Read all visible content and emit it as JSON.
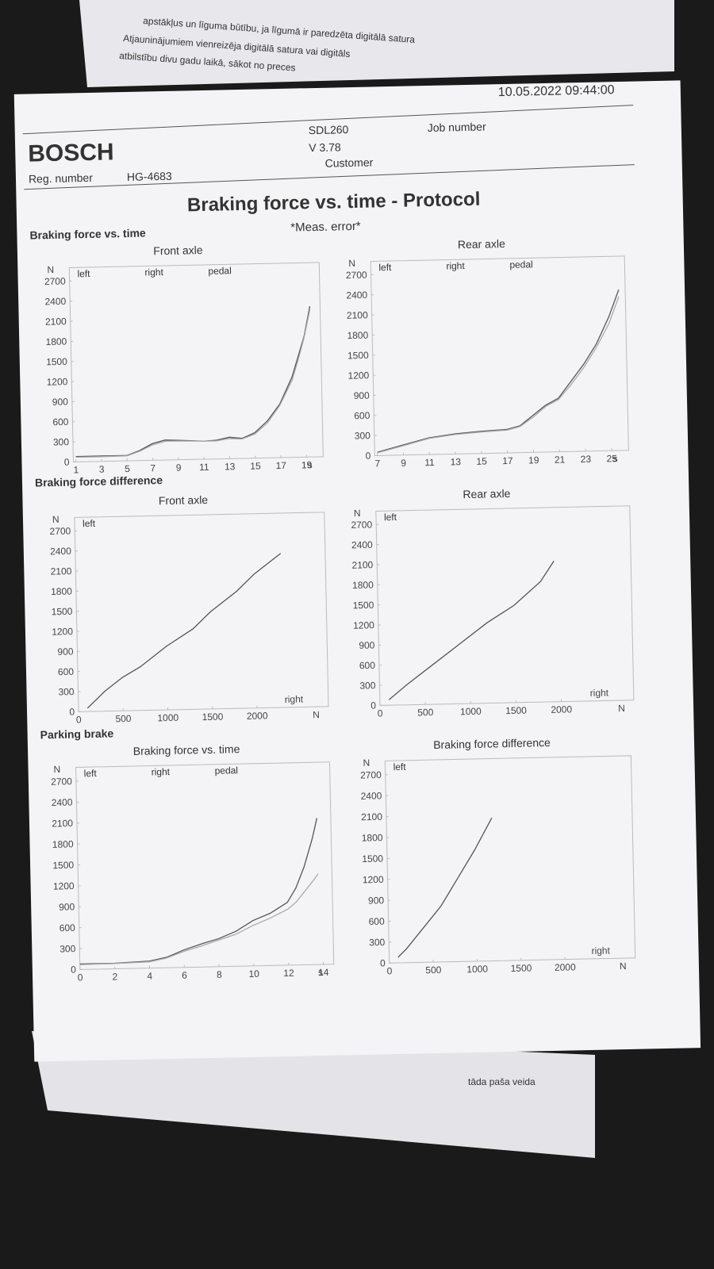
{
  "background_text": [
    "apstākļus un līguma būtību, ja līgumā ir paredzēta digitālā satura",
    "Atjauninājumiem vienreizēja digitālā satura vai digitāls",
    "atbilstību divu gadu laikā, sākot no preces",
    "tāda paša veida"
  ],
  "header": {
    "brand": "BOSCH",
    "reg_label": "Reg. number",
    "reg_number": "HG-4683",
    "device": "SDL260",
    "version": "V 3.78",
    "customer_label": "Customer",
    "job_label": "Job number",
    "datetime": "10.05.2022  09:44:00"
  },
  "title": "Braking force vs. time - Protocol",
  "note": "*Meas. error*",
  "sections": [
    "Braking force vs.  time",
    "Braking force difference",
    "Parking brake"
  ],
  "chart_data": [
    {
      "type": "line",
      "title": "Front axle",
      "y_label": "N",
      "x_label": "s",
      "x": [
        1,
        3,
        5,
        6,
        7,
        8,
        9,
        10,
        11,
        12,
        13,
        14,
        15,
        16,
        17,
        18,
        18.5,
        19,
        19.5
      ],
      "series": [
        {
          "name": "left",
          "color": "#555555",
          "values": [
            80,
            80,
            80,
            150,
            250,
            300,
            290,
            280,
            270,
            280,
            320,
            300,
            380,
            550,
            800,
            1200,
            1500,
            1800,
            2250
          ]
        },
        {
          "name": "right",
          "color": "#aaaaaa",
          "values": [
            70,
            70,
            75,
            140,
            230,
            280,
            280,
            275,
            270,
            270,
            300,
            290,
            360,
            520,
            780,
            1150,
            1450,
            1780,
            2200
          ]
        },
        {
          "name": "pedal",
          "color": "#888888",
          "values": [
            null,
            null,
            null,
            null,
            null,
            null,
            null,
            null,
            null,
            null,
            null,
            null,
            null,
            null,
            null,
            null,
            null,
            null,
            null
          ]
        }
      ],
      "xlim": [
        0.8,
        20.3
      ],
      "xticks": [
        1,
        3,
        5,
        7,
        9,
        11,
        13,
        15,
        17,
        19
      ],
      "ylim": [
        0,
        2900
      ],
      "yticks": [
        0,
        300,
        600,
        900,
        1200,
        1500,
        1800,
        2100,
        2400,
        2700
      ]
    },
    {
      "type": "line",
      "title": "Rear axle",
      "y_label": "N",
      "x_label": "s",
      "x": [
        7,
        9,
        11,
        13,
        15,
        17,
        18,
        19,
        20,
        21,
        22,
        23,
        24,
        25,
        25.8
      ],
      "series": [
        {
          "name": "left",
          "color": "#555555",
          "values": [
            50,
            150,
            250,
            300,
            330,
            350,
            400,
            550,
            700,
            800,
            1050,
            1300,
            1600,
            2000,
            2400
          ]
        },
        {
          "name": "right",
          "color": "#aaaaaa",
          "values": [
            40,
            140,
            240,
            290,
            320,
            340,
            390,
            520,
            680,
            780,
            1000,
            1250,
            1550,
            1900,
            2300
          ]
        },
        {
          "name": "pedal",
          "color": "#888888",
          "values": [
            null,
            null,
            null,
            null,
            null,
            null,
            null,
            null,
            null,
            null,
            null,
            null,
            null,
            null,
            null
          ]
        }
      ],
      "xlim": [
        6.8,
        26.3
      ],
      "xticks": [
        7,
        9,
        11,
        13,
        15,
        17,
        19,
        21,
        23,
        25
      ],
      "ylim": [
        0,
        2900
      ],
      "yticks": [
        0,
        300,
        600,
        900,
        1200,
        1500,
        1800,
        2100,
        2400,
        2700
      ]
    },
    {
      "type": "line",
      "title": "Front axle",
      "y_label": "N",
      "x_label": "N",
      "x_title": "right",
      "x": [
        100,
        300,
        500,
        700,
        1000,
        1300,
        1500,
        1800,
        2000,
        2300
      ],
      "series": [
        {
          "name": "left",
          "color": "#555555",
          "values": [
            50,
            300,
            500,
            650,
            950,
            1200,
            1450,
            1750,
            2000,
            2300
          ]
        }
      ],
      "xlim": [
        0,
        2800
      ],
      "xticks": [
        0,
        500,
        1000,
        1500,
        2000
      ],
      "ylim": [
        0,
        2900
      ],
      "yticks": [
        0,
        300,
        600,
        900,
        1200,
        1500,
        1800,
        2100,
        2400,
        2700
      ]
    },
    {
      "type": "line",
      "title": "Rear axle",
      "y_label": "N",
      "x_label": "N",
      "x_title": "right",
      "x": [
        100,
        300,
        600,
        900,
        1200,
        1500,
        1800,
        1950
      ],
      "series": [
        {
          "name": "left",
          "color": "#555555",
          "values": [
            80,
            300,
            600,
            900,
            1200,
            1450,
            1800,
            2100
          ]
        }
      ],
      "xlim": [
        0,
        2800
      ],
      "xticks": [
        0,
        500,
        1000,
        1500,
        2000
      ],
      "ylim": [
        0,
        2900
      ],
      "yticks": [
        0,
        300,
        600,
        900,
        1200,
        1500,
        1800,
        2100,
        2400,
        2700
      ]
    },
    {
      "type": "line",
      "title": "Braking force vs.  time",
      "y_label": "N",
      "x_label": "s",
      "x": [
        0,
        2,
        4,
        5,
        6,
        7,
        8,
        9,
        10,
        11,
        12,
        12.5,
        13,
        13.5,
        13.8
      ],
      "series": [
        {
          "name": "left",
          "color": "#555555",
          "values": [
            80,
            80,
            100,
            150,
            250,
            330,
            400,
            500,
            650,
            750,
            900,
            1100,
            1400,
            1800,
            2100
          ]
        },
        {
          "name": "right",
          "color": "#aaaaaa",
          "values": [
            70,
            75,
            90,
            140,
            230,
            300,
            380,
            460,
            580,
            680,
            800,
            900,
            1050,
            1200,
            1300
          ]
        },
        {
          "name": "pedal",
          "color": "#888888",
          "values": [
            null,
            null,
            null,
            null,
            null,
            null,
            null,
            null,
            null,
            null,
            null,
            null,
            null,
            null,
            null
          ]
        }
      ],
      "xlim": [
        0,
        14.6
      ],
      "xticks": [
        0,
        2,
        4,
        6,
        8,
        10,
        12,
        14
      ],
      "ylim": [
        0,
        2900
      ],
      "yticks": [
        0,
        300,
        600,
        900,
        1200,
        1500,
        1800,
        2100,
        2400,
        2700
      ]
    },
    {
      "type": "line",
      "title": "Braking force difference",
      "y_label": "N",
      "x_label": "N",
      "x_title": "right",
      "x": [
        100,
        200,
        400,
        600,
        800,
        1000,
        1200
      ],
      "series": [
        {
          "name": "left",
          "color": "#555555",
          "values": [
            80,
            200,
            500,
            800,
            1200,
            1600,
            2050
          ]
        }
      ],
      "xlim": [
        0,
        2800
      ],
      "xticks": [
        0,
        500,
        1000,
        1500,
        2000
      ],
      "ylim": [
        0,
        2900
      ],
      "yticks": [
        0,
        300,
        600,
        900,
        1200,
        1500,
        1800,
        2100,
        2400,
        2700
      ]
    }
  ]
}
